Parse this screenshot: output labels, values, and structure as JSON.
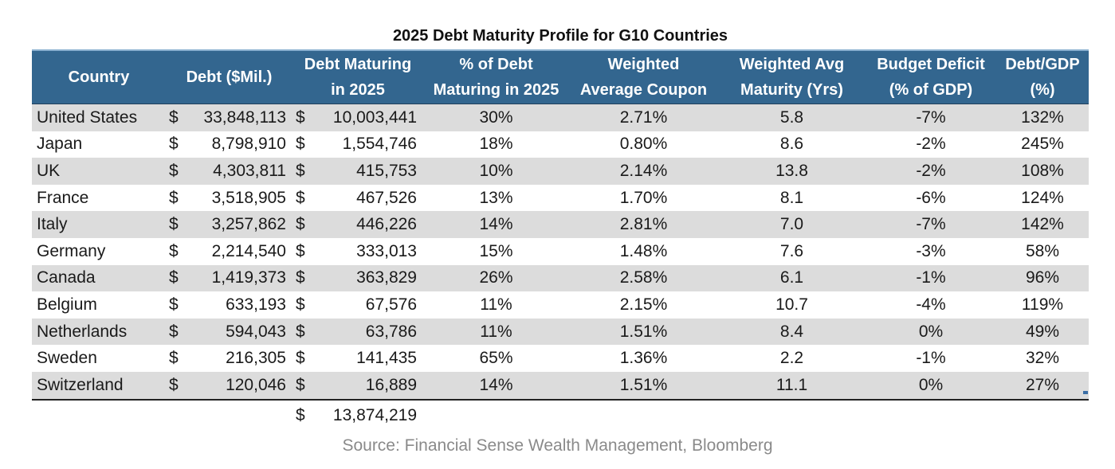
{
  "chart_data": {
    "type": "table",
    "title": "2025 Debt Maturity Profile for G10 Countries",
    "columns": [
      {
        "line1": "Country",
        "line2": ""
      },
      {
        "line1": "Debt ($Mil.)",
        "line2": ""
      },
      {
        "line1": "Debt Maturing",
        "line2": "in 2025"
      },
      {
        "line1": "% of Debt",
        "line2": "Maturing in 2025"
      },
      {
        "line1": "Weighted",
        "line2": "Average Coupon"
      },
      {
        "line1": "Weighted Avg",
        "line2": "Maturity (Yrs)"
      },
      {
        "line1": "Budget Deficit",
        "line2": "(% of GDP)"
      },
      {
        "line1": "Debt/GDP",
        "line2": "(%)"
      }
    ],
    "currency_symbol": "$",
    "rows": [
      {
        "country": "United States",
        "debt": "33,848,113",
        "maturing": "10,003,441",
        "pct_maturing": "30%",
        "coupon": "2.71%",
        "maturity": "5.8",
        "deficit": "-7%",
        "debt_gdp": "132%"
      },
      {
        "country": "Japan",
        "debt": "8,798,910",
        "maturing": "1,554,746",
        "pct_maturing": "18%",
        "coupon": "0.80%",
        "maturity": "8.6",
        "deficit": "-2%",
        "debt_gdp": "245%"
      },
      {
        "country": "UK",
        "debt": "4,303,811",
        "maturing": "415,753",
        "pct_maturing": "10%",
        "coupon": "2.14%",
        "maturity": "13.8",
        "deficit": "-2%",
        "debt_gdp": "108%"
      },
      {
        "country": "France",
        "debt": "3,518,905",
        "maturing": "467,526",
        "pct_maturing": "13%",
        "coupon": "1.70%",
        "maturity": "8.1",
        "deficit": "-6%",
        "debt_gdp": "124%"
      },
      {
        "country": "Italy",
        "debt": "3,257,862",
        "maturing": "446,226",
        "pct_maturing": "14%",
        "coupon": "2.81%",
        "maturity": "7.0",
        "deficit": "-7%",
        "debt_gdp": "142%"
      },
      {
        "country": "Germany",
        "debt": "2,214,540",
        "maturing": "333,013",
        "pct_maturing": "15%",
        "coupon": "1.48%",
        "maturity": "7.6",
        "deficit": "-3%",
        "debt_gdp": "58%"
      },
      {
        "country": "Canada",
        "debt": "1,419,373",
        "maturing": "363,829",
        "pct_maturing": "26%",
        "coupon": "2.58%",
        "maturity": "6.1",
        "deficit": "-1%",
        "debt_gdp": "96%"
      },
      {
        "country": "Belgium",
        "debt": "633,193",
        "maturing": "67,576",
        "pct_maturing": "11%",
        "coupon": "2.15%",
        "maturity": "10.7",
        "deficit": "-4%",
        "debt_gdp": "119%"
      },
      {
        "country": "Netherlands",
        "debt": "594,043",
        "maturing": "63,786",
        "pct_maturing": "11%",
        "coupon": "1.51%",
        "maturity": "8.4",
        "deficit": "0%",
        "debt_gdp": "49%"
      },
      {
        "country": "Sweden",
        "debt": "216,305",
        "maturing": "141,435",
        "pct_maturing": "65%",
        "coupon": "1.36%",
        "maturity": "2.2",
        "deficit": "-1%",
        "debt_gdp": "32%"
      },
      {
        "country": "Switzerland",
        "debt": "120,046",
        "maturing": "16,889",
        "pct_maturing": "14%",
        "coupon": "1.51%",
        "maturity": "11.1",
        "deficit": "0%",
        "debt_gdp": "27%"
      }
    ],
    "total_maturing": "13,874,219",
    "source": "Source: Financial Sense Wealth Management, Bloomberg"
  },
  "colors": {
    "header_bg": "#33668f",
    "header_text": "#ffffff",
    "row_shade": "#dcdcdc",
    "row_plain": "#ffffff",
    "source_text": "#8a8a8a"
  }
}
